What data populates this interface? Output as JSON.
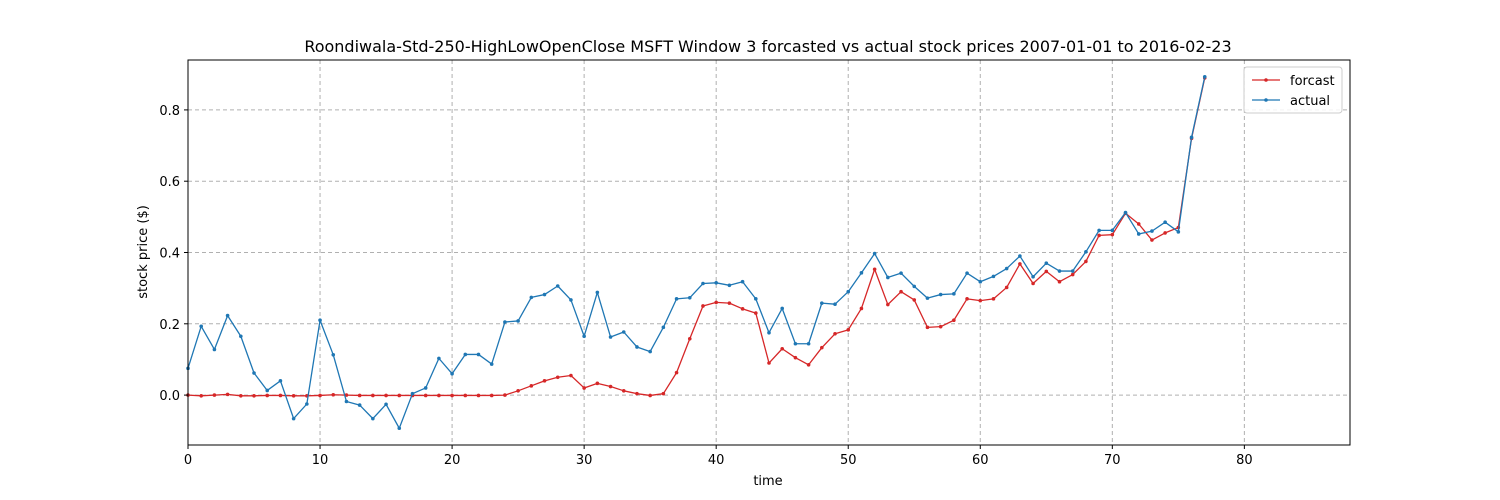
{
  "chart_data": {
    "type": "line",
    "title": "Roondiwala-Std-250-HighLowOpenClose MSFT Window 3 forcasted vs actual stock prices 2007-01-01 to 2016-02-23",
    "xlabel": "time",
    "ylabel": "stock price ($)",
    "xlim": [
      0,
      88
    ],
    "ylim": [
      -0.14,
      0.94
    ],
    "xticks": [
      0,
      10,
      20,
      30,
      40,
      50,
      60,
      70,
      80
    ],
    "yticks": [
      0.0,
      0.2,
      0.4,
      0.6,
      0.8
    ],
    "ytick_labels": [
      "0.0",
      "0.2",
      "0.4",
      "0.6",
      "0.8"
    ],
    "grid": true,
    "legend_position": "top-right",
    "series": [
      {
        "name": "forcast",
        "color": "#d62728",
        "x": [
          0,
          1,
          2,
          3,
          4,
          5,
          6,
          7,
          8,
          9,
          10,
          11,
          12,
          13,
          14,
          15,
          16,
          17,
          18,
          19,
          20,
          21,
          22,
          23,
          24,
          25,
          26,
          27,
          28,
          29,
          30,
          31,
          32,
          33,
          34,
          35,
          36,
          37,
          38,
          39,
          40,
          41,
          42,
          43,
          44,
          45,
          46,
          47,
          48,
          49,
          50,
          51,
          52,
          53,
          54,
          55,
          56,
          57,
          58,
          59,
          60,
          61,
          62,
          63,
          64,
          65,
          66,
          67,
          68,
          69,
          70,
          71,
          72,
          73,
          74,
          75,
          76,
          77
        ],
        "values": [
          0.0,
          -0.002,
          0.0,
          0.002,
          -0.002,
          -0.002,
          -0.001,
          -0.001,
          -0.002,
          -0.002,
          -0.001,
          0.001,
          0.0,
          -0.001,
          -0.001,
          -0.001,
          -0.001,
          -0.001,
          -0.001,
          -0.001,
          -0.001,
          -0.001,
          -0.001,
          -0.001,
          0.0,
          0.012,
          0.026,
          0.04,
          0.05,
          0.055,
          0.02,
          0.033,
          0.024,
          0.012,
          0.004,
          -0.001,
          0.004,
          0.063,
          0.158,
          0.25,
          0.26,
          0.258,
          0.242,
          0.23,
          0.09,
          0.13,
          0.105,
          0.085,
          0.133,
          0.172,
          0.183,
          0.243,
          0.353,
          0.254,
          0.29,
          0.267,
          0.19,
          0.192,
          0.21,
          0.27,
          0.265,
          0.27,
          0.302,
          0.368,
          0.313,
          0.347,
          0.318,
          0.338,
          0.375,
          0.448,
          0.45,
          0.51,
          0.48,
          0.435,
          0.455,
          0.47,
          0.72,
          0.89
        ]
      },
      {
        "name": "actual",
        "color": "#1f77b4",
        "x": [
          0,
          1,
          2,
          3,
          4,
          5,
          6,
          7,
          8,
          9,
          10,
          11,
          12,
          13,
          14,
          15,
          16,
          17,
          18,
          19,
          20,
          21,
          22,
          23,
          24,
          25,
          26,
          27,
          28,
          29,
          30,
          31,
          32,
          33,
          34,
          35,
          36,
          37,
          38,
          39,
          40,
          41,
          42,
          43,
          44,
          45,
          46,
          47,
          48,
          49,
          50,
          51,
          52,
          53,
          54,
          55,
          56,
          57,
          58,
          59,
          60,
          61,
          62,
          63,
          64,
          65,
          66,
          67,
          68,
          69,
          70,
          71,
          72,
          73,
          74,
          75,
          76,
          77
        ],
        "values": [
          0.075,
          0.193,
          0.128,
          0.223,
          0.165,
          0.062,
          0.013,
          0.04,
          -0.066,
          -0.025,
          0.21,
          0.113,
          -0.018,
          -0.028,
          -0.066,
          -0.026,
          -0.093,
          0.004,
          0.02,
          0.103,
          0.06,
          0.114,
          0.114,
          0.087,
          0.205,
          0.208,
          0.274,
          0.282,
          0.306,
          0.267,
          0.165,
          0.288,
          0.163,
          0.177,
          0.135,
          0.122,
          0.19,
          0.27,
          0.273,
          0.313,
          0.315,
          0.308,
          0.318,
          0.27,
          0.175,
          0.243,
          0.144,
          0.144,
          0.258,
          0.255,
          0.29,
          0.343,
          0.397,
          0.33,
          0.342,
          0.305,
          0.272,
          0.282,
          0.284,
          0.342,
          0.318,
          0.333,
          0.355,
          0.39,
          0.332,
          0.37,
          0.348,
          0.348,
          0.402,
          0.462,
          0.462,
          0.512,
          0.452,
          0.46,
          0.485,
          0.458,
          0.723,
          0.893
        ]
      }
    ]
  }
}
